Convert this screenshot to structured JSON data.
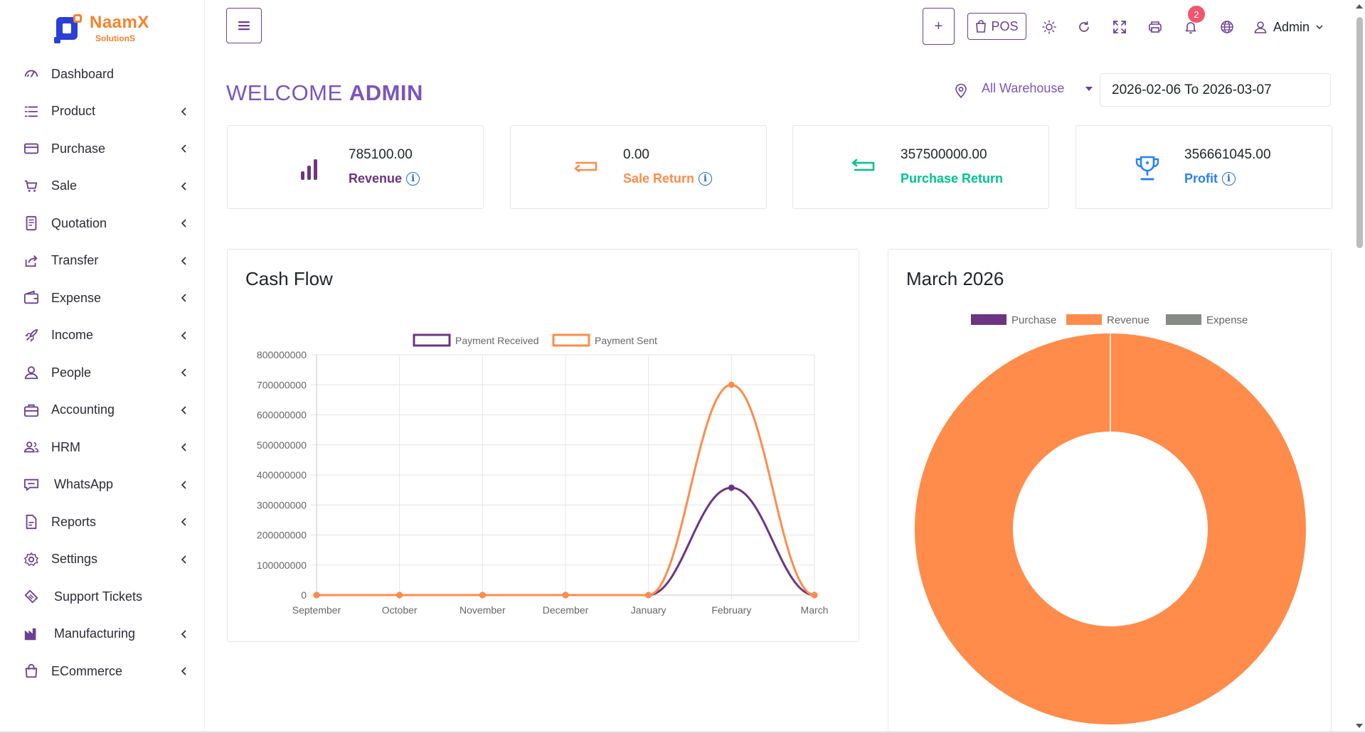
{
  "brand": {
    "name": "NaamX",
    "sub": "SolutionS"
  },
  "sidebar": {
    "items": [
      {
        "label": "Dashboard",
        "icon": "gauge-icon",
        "has_children": false
      },
      {
        "label": "Product",
        "icon": "list-icon",
        "has_children": true
      },
      {
        "label": "Purchase",
        "icon": "credit-card-icon",
        "has_children": true
      },
      {
        "label": "Sale",
        "icon": "cart-icon",
        "has_children": true
      },
      {
        "label": "Quotation",
        "icon": "document-icon",
        "has_children": true
      },
      {
        "label": "Transfer",
        "icon": "share-icon",
        "has_children": true
      },
      {
        "label": "Expense",
        "icon": "wallet-icon",
        "has_children": true
      },
      {
        "label": "Income",
        "icon": "rocket-icon",
        "has_children": true
      },
      {
        "label": "People",
        "icon": "user-icon",
        "has_children": true
      },
      {
        "label": "Accounting",
        "icon": "briefcase-icon",
        "has_children": true
      },
      {
        "label": "HRM",
        "icon": "users-icon",
        "has_children": true
      },
      {
        "label": "WhatsApp",
        "icon": "chat-icon",
        "has_children": true
      },
      {
        "label": "Reports",
        "icon": "file-icon",
        "has_children": true
      },
      {
        "label": "Settings",
        "icon": "gear-icon",
        "has_children": true
      },
      {
        "label": "Support Tickets",
        "icon": "ticket-icon",
        "has_children": false
      },
      {
        "label": "Manufacturing",
        "icon": "factory-icon",
        "has_children": true
      },
      {
        "label": "ECommerce",
        "icon": "bag-icon",
        "has_children": true
      }
    ]
  },
  "header": {
    "plus_label": "+",
    "pos_label": "POS",
    "notification_count": "2",
    "user_label": "Admin"
  },
  "welcome": {
    "prefix": "WELCOME",
    "name": "ADMIN"
  },
  "filters": {
    "warehouse": "All Warehouse",
    "date_range": "2026-02-06 To 2026-03-07"
  },
  "stats": [
    {
      "value": "785100.00",
      "label": "Revenue",
      "color": "#6c3483"
    },
    {
      "value": "0.00",
      "label": "Sale Return",
      "color": "#ff8c4b"
    },
    {
      "value": "357500000.00",
      "label": "Purchase Return",
      "color": "#00c292"
    },
    {
      "value": "356661045.00",
      "label": "Profit",
      "color": "#297ff9"
    }
  ],
  "cash_flow": {
    "title": "Cash Flow"
  },
  "monthly": {
    "title": "March 2026"
  },
  "chart_data": [
    {
      "type": "line",
      "title": "Cash Flow",
      "categories": [
        "September",
        "October",
        "November",
        "December",
        "January",
        "February",
        "March"
      ],
      "series": [
        {
          "name": "Payment Received",
          "color": "#6c3483",
          "values": [
            0,
            0,
            0,
            0,
            0,
            357500000,
            0
          ]
        },
        {
          "name": "Payment Sent",
          "color": "#ff8c4b",
          "values": [
            0,
            0,
            0,
            0,
            0,
            700000000,
            0
          ]
        }
      ],
      "ylim": [
        0,
        800000000
      ],
      "yticks": [
        "800000000",
        "700000000",
        "600000000",
        "500000000",
        "400000000",
        "300000000",
        "200000000",
        "100000000",
        "0"
      ],
      "legend": "top",
      "grid": true
    },
    {
      "type": "pie",
      "variant": "doughnut",
      "title": "March 2026",
      "labels": [
        "Purchase",
        "Revenue",
        "Expense"
      ],
      "colors": [
        "#6c3483",
        "#ff8c4b",
        "#858c85"
      ],
      "values": [
        0,
        785100,
        0
      ],
      "legend": "top"
    }
  ]
}
